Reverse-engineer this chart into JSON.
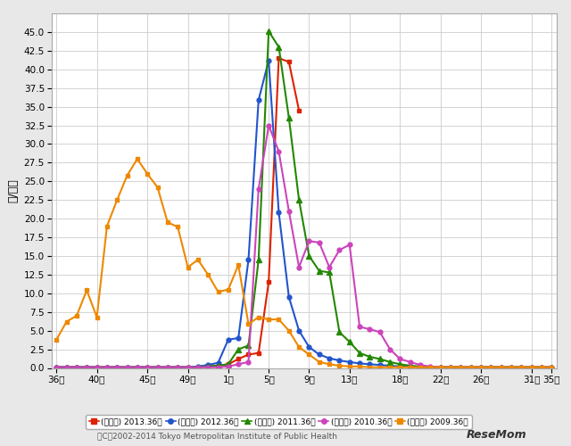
{
  "ylabel": "人/定点",
  "ylim": [
    0,
    47.5
  ],
  "yticks": [
    0.0,
    2.5,
    5.0,
    7.5,
    10.0,
    12.5,
    15.0,
    17.5,
    20.0,
    22.5,
    25.0,
    27.5,
    30.0,
    32.5,
    35.0,
    37.5,
    40.0,
    42.5,
    45.0
  ],
  "background_color": "#e8e8e8",
  "plot_bg_color": "#ffffff",
  "series": [
    {
      "label": "（東京都） 2013.36～",
      "color": "#dd2200",
      "marker": "s",
      "markersize": 3.5,
      "linewidth": 1.5,
      "data": [
        0.1,
        0.1,
        0.1,
        0.1,
        0.1,
        0.1,
        0.1,
        0.1,
        0.1,
        0.1,
        0.1,
        0.1,
        0.1,
        0.1,
        0.1,
        0.2,
        0.3,
        0.5,
        1.2,
        1.8,
        2.0,
        11.5,
        41.5,
        41.0,
        34.5,
        null,
        null,
        null,
        null,
        null,
        null,
        null,
        null,
        null,
        null,
        null,
        null,
        null,
        null,
        null,
        null,
        null,
        null,
        null,
        null,
        null,
        null,
        null,
        null,
        null
      ]
    },
    {
      "label": "（東京都） 2012.36～",
      "color": "#2255cc",
      "marker": "o",
      "markersize": 3.5,
      "linewidth": 1.5,
      "data": [
        0.1,
        0.1,
        0.1,
        0.1,
        0.1,
        0.1,
        0.1,
        0.1,
        0.1,
        0.1,
        0.1,
        0.1,
        0.1,
        0.1,
        0.2,
        0.4,
        0.7,
        3.8,
        4.0,
        14.5,
        35.9,
        41.2,
        20.8,
        9.5,
        5.0,
        2.8,
        1.8,
        1.3,
        1.0,
        0.8,
        0.6,
        0.5,
        0.4,
        0.3,
        0.2,
        0.2,
        0.1,
        0.1,
        0.1,
        0.1,
        0.1,
        0.1,
        0.1,
        0.1,
        0.1,
        0.1,
        0.1,
        0.1,
        0.1,
        0.1
      ]
    },
    {
      "label": "（東京都） 2011.36～",
      "color": "#228800",
      "marker": "^",
      "markersize": 4,
      "linewidth": 1.5,
      "data": [
        0.1,
        0.1,
        0.1,
        0.1,
        0.1,
        0.1,
        0.1,
        0.1,
        0.1,
        0.1,
        0.1,
        0.1,
        0.1,
        0.1,
        0.1,
        0.2,
        0.3,
        0.5,
        2.5,
        3.0,
        14.5,
        45.1,
        43.0,
        33.5,
        22.5,
        15.0,
        13.0,
        12.8,
        4.8,
        3.5,
        2.0,
        1.5,
        1.2,
        0.8,
        0.5,
        0.3,
        0.2,
        0.1,
        0.1,
        0.1,
        0.1,
        0.1,
        0.1,
        0.1,
        0.1,
        0.1,
        0.1,
        0.1,
        0.1,
        0.1
      ]
    },
    {
      "label": "（東京都） 2010.36～",
      "color": "#cc44bb",
      "marker": "o",
      "markersize": 3.5,
      "linewidth": 1.5,
      "data": [
        0.1,
        0.1,
        0.1,
        0.1,
        0.1,
        0.1,
        0.1,
        0.1,
        0.1,
        0.1,
        0.1,
        0.1,
        0.1,
        0.1,
        0.1,
        0.1,
        0.1,
        0.2,
        0.5,
        0.8,
        24.0,
        32.5,
        29.0,
        21.0,
        13.5,
        17.0,
        16.8,
        13.5,
        15.8,
        16.5,
        5.5,
        5.2,
        4.8,
        2.5,
        1.2,
        0.8,
        0.4,
        0.2,
        0.1,
        0.1,
        0.1,
        0.1,
        0.1,
        0.1,
        0.1,
        0.1,
        0.1,
        0.1,
        0.1,
        0.1
      ]
    },
    {
      "label": "（東京都） 2009.36～",
      "color": "#ee8800",
      "marker": "s",
      "markersize": 3.5,
      "linewidth": 1.5,
      "data": [
        3.8,
        6.2,
        7.0,
        10.4,
        6.8,
        19.0,
        22.5,
        25.8,
        28.0,
        26.0,
        24.2,
        19.5,
        18.9,
        13.5,
        14.5,
        12.5,
        10.2,
        10.5,
        13.8,
        5.9,
        6.8,
        6.5,
        6.5,
        5.0,
        2.8,
        1.8,
        0.8,
        0.5,
        0.3,
        0.2,
        0.2,
        0.1,
        0.1,
        0.1,
        0.1,
        0.1,
        0.1,
        0.1,
        0.1,
        0.1,
        0.1,
        0.1,
        0.1,
        0.1,
        0.1,
        0.1,
        0.1,
        0.1,
        0.1,
        0.1
      ]
    }
  ],
  "xtick_map": {
    "0": "36週",
    "4": "40週",
    "9": "45週",
    "13": "49週",
    "17": "1週",
    "21": "5週",
    "25": "9週",
    "29": "13週",
    "34": "18週",
    "38": "22週",
    "42": "26週",
    "47": "31週",
    "49": "35週"
  },
  "xlim": [
    -0.5,
    49.5
  ],
  "legend_colors": [
    "#dd2200",
    "#2255cc",
    "#228800",
    "#cc44bb",
    "#ee8800"
  ],
  "legend_markers": [
    "s",
    "o",
    "^",
    "o",
    "s"
  ],
  "legend_labels": [
    "(東京都) 2013.36～",
    "(東京都) 2012.36～",
    "(東京都) 2011.36～",
    "(東京都) 2010.36～",
    "(東京都) 2009.36～"
  ],
  "footer": "（C）2002-2014 Tokyo Metropolitan Institute of Public Health"
}
